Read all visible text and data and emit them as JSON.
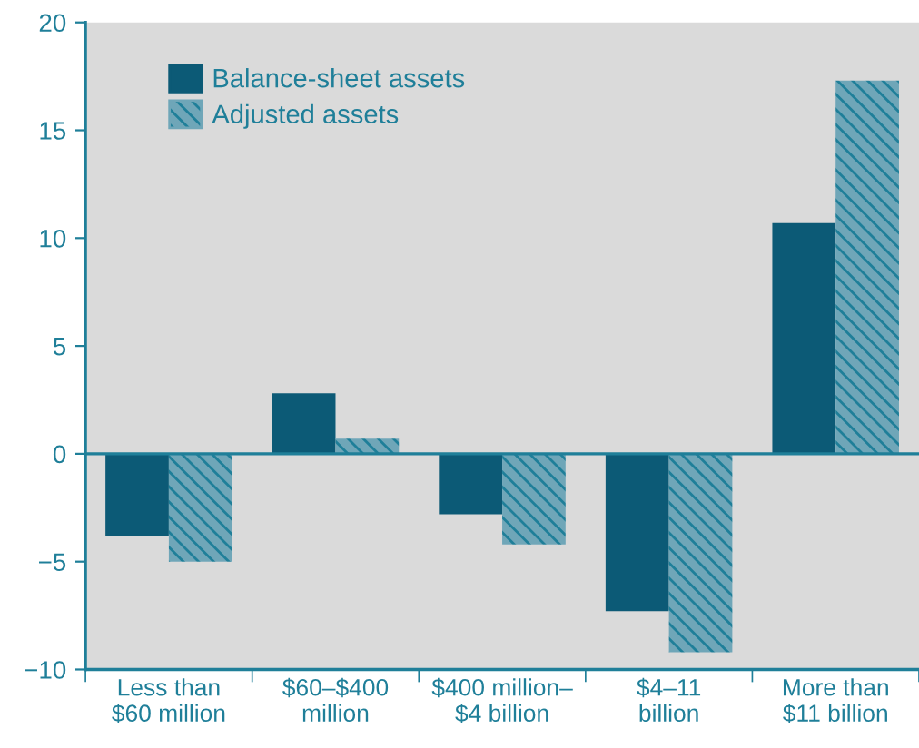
{
  "chart_data": {
    "type": "bar",
    "categories": [
      "Less than\n$60 million",
      "$60–$400\nmillion",
      "$400 million–\n$4 billion",
      "$4–11\nbillion",
      "More than\n$11 billion"
    ],
    "series": [
      {
        "name": "Balance-sheet assets",
        "color": "#0c5a76",
        "values": [
          -3.8,
          2.8,
          -2.8,
          -7.3,
          10.7
        ]
      },
      {
        "name": "Adjusted assets",
        "color": "#6fa6b8",
        "values": [
          -5.0,
          0.7,
          -4.2,
          -9.2,
          17.3
        ]
      }
    ],
    "ref_lines": [
      {
        "axis": "y",
        "value": 0,
        "color": "#1f7f99"
      }
    ],
    "ylim": [
      -10,
      20
    ],
    "yticks": [
      {
        "value": -10,
        "label": "−10"
      },
      {
        "value": -5,
        "label": "−5"
      },
      0,
      5,
      10,
      15,
      20
    ],
    "grid": false,
    "legend": "top left"
  }
}
